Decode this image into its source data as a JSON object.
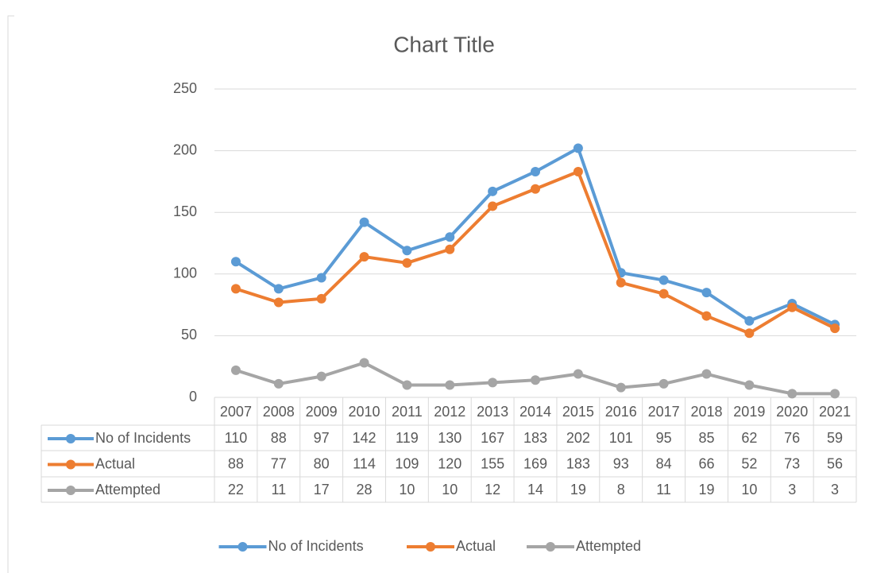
{
  "chart_data": {
    "type": "line",
    "title": "Chart Title",
    "categories": [
      "2007",
      "2008",
      "2009",
      "2010",
      "2011",
      "2012",
      "2013",
      "2014",
      "2015",
      "2016",
      "2017",
      "2018",
      "2019",
      "2020",
      "2021"
    ],
    "series": [
      {
        "name": "No of Incidents",
        "color": "#5b9bd5",
        "values": [
          110,
          88,
          97,
          142,
          119,
          130,
          167,
          183,
          202,
          101,
          95,
          85,
          62,
          76,
          59
        ]
      },
      {
        "name": "Actual",
        "color": "#ed7d31",
        "values": [
          88,
          77,
          80,
          114,
          109,
          120,
          155,
          169,
          183,
          93,
          84,
          66,
          52,
          73,
          56
        ]
      },
      {
        "name": "Attempted",
        "color": "#a5a5a5",
        "values": [
          22,
          11,
          17,
          28,
          10,
          10,
          12,
          14,
          19,
          8,
          11,
          19,
          10,
          3,
          3
        ]
      }
    ],
    "ylim": [
      0,
      250
    ],
    "yticks": [
      0,
      50,
      100,
      150,
      200,
      250
    ],
    "grid": true,
    "legend": "bottom",
    "data_table": true
  }
}
